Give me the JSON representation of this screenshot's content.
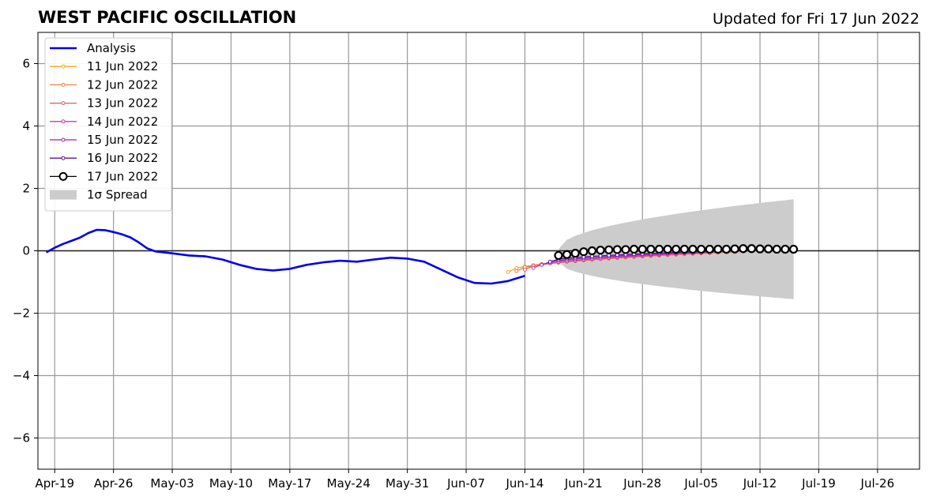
{
  "chart_data": {
    "type": "line",
    "title": "WEST PACIFIC OSCILLATION",
    "subtitle": "Updated for Fri 17 Jun 2022",
    "xlabel": "",
    "ylabel": "",
    "xlim": [
      "2022-04-17",
      "2022-07-31"
    ],
    "ylim": [
      -7,
      7
    ],
    "grid": true,
    "legend_position": "top-left",
    "x_ticks": [
      "2022-04-19",
      "2022-04-26",
      "2022-05-03",
      "2022-05-10",
      "2022-05-17",
      "2022-05-24",
      "2022-05-31",
      "2022-06-07",
      "2022-06-14",
      "2022-06-21",
      "2022-06-28",
      "2022-07-05",
      "2022-07-12",
      "2022-07-19",
      "2022-07-26"
    ],
    "x_tick_labels": [
      "Apr-19",
      "Apr-26",
      "May-03",
      "May-10",
      "May-17",
      "May-24",
      "May-31",
      "Jun-07",
      "Jun-14",
      "Jun-21",
      "Jun-28",
      "Jul-05",
      "Jul-12",
      "Jul-19",
      "Jul-26"
    ],
    "y_ticks": [
      6,
      4,
      2,
      0,
      -2,
      -4,
      -6
    ],
    "y_tick_labels": [
      "6",
      "4",
      "2",
      "0",
      "−2",
      "−4",
      "−6"
    ],
    "analysis": {
      "name": "Analysis",
      "color": "#0000ee",
      "x": [
        "2022-04-18",
        "2022-04-19",
        "2022-04-20",
        "2022-04-21",
        "2022-04-22",
        "2022-04-23",
        "2022-04-24",
        "2022-04-25",
        "2022-04-26",
        "2022-04-27",
        "2022-04-28",
        "2022-04-29",
        "2022-04-30",
        "2022-05-01",
        "2022-05-03",
        "2022-05-05",
        "2022-05-07",
        "2022-05-09",
        "2022-05-11",
        "2022-05-13",
        "2022-05-15",
        "2022-05-17",
        "2022-05-19",
        "2022-05-21",
        "2022-05-23",
        "2022-05-25",
        "2022-05-27",
        "2022-05-29",
        "2022-05-31",
        "2022-06-02",
        "2022-06-04",
        "2022-06-06",
        "2022-06-08",
        "2022-06-10",
        "2022-06-12",
        "2022-06-14"
      ],
      "y": [
        -0.05,
        0.1,
        0.22,
        0.32,
        0.42,
        0.57,
        0.67,
        0.66,
        0.6,
        0.53,
        0.43,
        0.27,
        0.08,
        -0.02,
        -0.08,
        -0.15,
        -0.18,
        -0.28,
        -0.45,
        -0.58,
        -0.63,
        -0.58,
        -0.45,
        -0.37,
        -0.32,
        -0.35,
        -0.28,
        -0.22,
        -0.25,
        -0.35,
        -0.6,
        -0.85,
        -1.03,
        -1.05,
        -0.97,
        -0.8
      ]
    },
    "forecasts": [
      {
        "name": "11 Jun 2022",
        "color": "#f5a623",
        "start": "2022-06-12",
        "end": "2022-07-14",
        "y_start": -0.68,
        "y_end": 0.03
      },
      {
        "name": "12 Jun 2022",
        "color": "#f08040",
        "start": "2022-06-13",
        "end": "2022-07-14",
        "y_start": -0.65,
        "y_end": 0.02
      },
      {
        "name": "13 Jun 2022",
        "color": "#e05a70",
        "start": "2022-06-14",
        "end": "2022-07-14",
        "y_start": -0.6,
        "y_end": 0.03
      },
      {
        "name": "14 Jun 2022",
        "color": "#c040a0",
        "start": "2022-06-15",
        "end": "2022-07-14",
        "y_start": -0.55,
        "y_end": 0.04
      },
      {
        "name": "15 Jun 2022",
        "color": "#9a20b0",
        "start": "2022-06-16",
        "end": "2022-07-14",
        "y_start": -0.45,
        "y_end": 0.05
      },
      {
        "name": "16 Jun 2022",
        "color": "#6010a0",
        "start": "2022-06-17",
        "end": "2022-07-14",
        "y_start": -0.35,
        "y_end": 0.05
      },
      {
        "name": "17 Jun 2022",
        "color": "#000000",
        "start": "2022-06-18",
        "end": "2022-07-16",
        "y": [
          -0.15,
          -0.12,
          -0.08,
          -0.03,
          0.0,
          0.02,
          0.03,
          0.04,
          0.04,
          0.05,
          0.05,
          0.05,
          0.05,
          0.05,
          0.05,
          0.05,
          0.05,
          0.05,
          0.05,
          0.05,
          0.05,
          0.06,
          0.07,
          0.07,
          0.06,
          0.06,
          0.05,
          0.05,
          0.05
        ]
      }
    ],
    "spread": {
      "name": "1σ Spread",
      "color": "#cccccc",
      "start": "2022-06-18",
      "end": "2022-07-16",
      "upper_start": 0.05,
      "upper_end": 1.65,
      "lower_start": -0.35,
      "lower_end": -1.55
    }
  }
}
